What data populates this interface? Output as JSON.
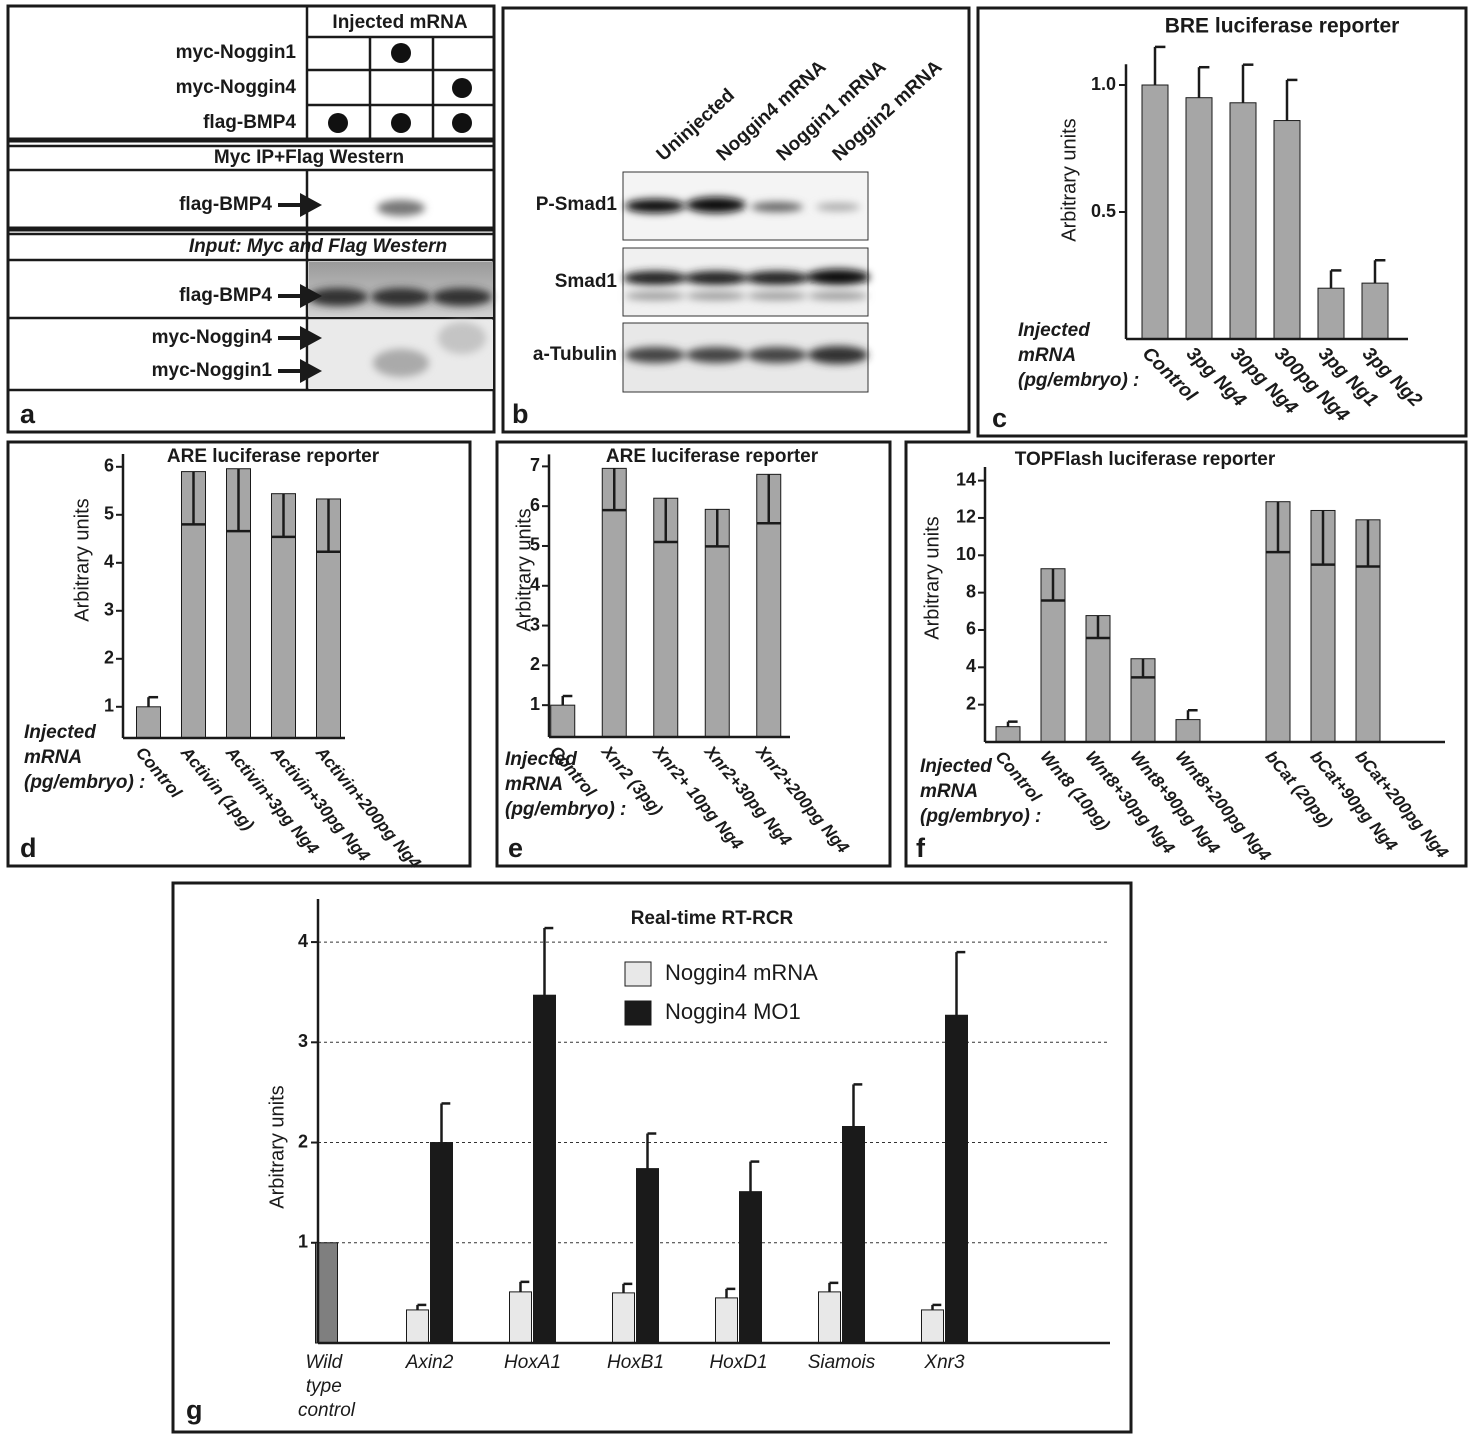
{
  "panel_a": {
    "header": "Injected mRNA",
    "rows": [
      {
        "label": "myc-Noggin1",
        "dots": [
          false,
          true,
          false
        ]
      },
      {
        "label": "myc-Noggin4",
        "dots": [
          false,
          false,
          true
        ]
      },
      {
        "label": "flag-BMP4",
        "dots": [
          true,
          true,
          true
        ]
      }
    ],
    "ip_title": "Myc IP+Flag Western",
    "ip_blot_label": "flag-BMP4",
    "input_title": "Input: Myc and Flag Western",
    "input_blot_labels": [
      "flag-BMP4",
      "myc-Noggin4",
      "myc-Noggin1"
    ],
    "panel_label": "a"
  },
  "panel_b": {
    "lanes": [
      "Uninjected",
      "Noggin4 mRNA",
      "Noggin1 mRNA",
      "Noggin2 mRNA"
    ],
    "rows": [
      "P-Smad1",
      "Smad1",
      "a-Tubulin"
    ],
    "panel_label": "b"
  },
  "chart_data": [
    {
      "type": "bar",
      "title": "BRE luciferase reporter",
      "y_label": "Arbitrary units",
      "annotation": [
        "Injected",
        "mRNA",
        "(pg/embryo) :"
      ],
      "panel_label": "c",
      "categories": [
        "Control",
        "3pg Ng4",
        "30pg Ng4",
        "300pg Ng4",
        "3pg Ng1",
        "3pg Ng2"
      ],
      "values": [
        1.0,
        0.95,
        0.93,
        0.86,
        0.2,
        0.22
      ],
      "errors": [
        0.15,
        0.12,
        0.15,
        0.16,
        0.07,
        0.09
      ],
      "color": "#a6a6a6",
      "ylim": [
        0,
        1.05
      ],
      "yticks": [
        0.5,
        {
          "value": 1,
          "label": "1.0"
        }
      ],
      "grid": false
    },
    {
      "type": "bar",
      "title": "ARE luciferase reporter",
      "y_label": "Arbitrary units",
      "annotation": [
        "Injected",
        "mRNA",
        "(pg/embryo) :"
      ],
      "panel_label": "d",
      "categories": [
        "Control",
        "Activin (1pg)",
        "Activin+3pg Ng4",
        "Activin+30pg Ng4",
        "Activin+200pg Ng4"
      ],
      "values": [
        1.0,
        5.9,
        5.96,
        5.44,
        5.33
      ],
      "errors": [
        0.2,
        1.1,
        1.3,
        0.9,
        1.1
      ],
      "error_side": [
        "up",
        "down",
        "down",
        "down",
        "down"
      ],
      "color": "#a6a6a6",
      "ylim": [
        0.35,
        6.1
      ],
      "yticks": [
        1,
        2,
        3,
        4,
        5,
        6
      ],
      "grid": false
    },
    {
      "type": "bar",
      "title": "ARE luciferase reporter",
      "y_label": "Arbitrary units",
      "annotation": [
        "Injected",
        "mRNA",
        "(pg/embryo) :"
      ],
      "panel_label": "e",
      "categories": [
        "Control",
        "Xnr2 (3pg)",
        "Xnr2+ 10pg Ng4",
        "Xnr2+30pg Ng4",
        "Xnr2+200pg Ng4"
      ],
      "values": [
        1.0,
        6.95,
        6.2,
        5.92,
        6.8
      ],
      "errors": [
        0.23,
        1.05,
        1.1,
        0.93,
        1.23
      ],
      "error_side": [
        "up",
        "down",
        "down",
        "down",
        "down"
      ],
      "color": "#a6a6a6",
      "ylim": [
        0.2,
        7.1
      ],
      "yticks": [
        1,
        2,
        3,
        4,
        5,
        6,
        7
      ],
      "grid": false
    },
    {
      "type": "bar",
      "title": "TOPFlash luciferase reporter",
      "y_label": "Arbitrary units",
      "annotation": [
        "Injected",
        "mRNA",
        "(pg/embryo) :"
      ],
      "panel_label": "f",
      "categories": [
        "Control",
        "Wnt8 (10pg)",
        "Wnt8+30pg Ng4",
        "Wnt8+90pg Ng4",
        "Wnt8+200pg Ng4",
        null,
        "bCat (20pg)",
        "bCat+90pg Ng4",
        "bCat+200pg Ng4"
      ],
      "values": [
        0.82,
        9.28,
        6.77,
        4.46,
        1.2,
        null,
        12.87,
        12.4,
        11.9
      ],
      "errors": [
        0.27,
        1.7,
        1.2,
        1.0,
        0.5,
        null,
        2.7,
        2.9,
        2.5
      ],
      "error_side": [
        "up",
        "down",
        "down",
        "down",
        "up",
        null,
        "down",
        "down",
        "down"
      ],
      "color": "#a6a6a6",
      "ylim": [
        0,
        14.3
      ],
      "yticks": [
        2,
        4,
        6,
        8,
        10,
        12,
        14
      ],
      "grid": false
    },
    {
      "type": "bar",
      "title": "Real-time RT-RCR",
      "y_label": "Arbitrary units",
      "panel_label": "g",
      "categories": [
        "Wild type control",
        "Axin2",
        "HoxA1",
        "HoxB1",
        "HoxD1",
        "Siamois",
        "Xnr3"
      ],
      "series": [
        {
          "color": "#7f7f7f",
          "values": [
            1,
            null,
            null,
            null,
            null,
            null,
            null
          ]
        },
        {
          "name": "Noggin4 mRNA",
          "color": "#e8e8e8",
          "values": [
            null,
            0.33,
            0.51,
            0.5,
            0.45,
            0.51,
            0.33
          ],
          "errors": [
            null,
            0.05,
            0.1,
            0.09,
            0.09,
            0.09,
            0.05
          ]
        },
        {
          "name": "Noggin4 MO1",
          "color": "#1a1a1a",
          "values": [
            null,
            2.0,
            3.47,
            1.74,
            1.51,
            2.16,
            3.27
          ],
          "errors": [
            null,
            0.39,
            0.67,
            0.35,
            0.3,
            0.42,
            0.63
          ]
        }
      ],
      "ylim": [
        0,
        4.35
      ],
      "yticks": [
        1,
        2,
        3,
        4
      ],
      "grid": true
    }
  ]
}
